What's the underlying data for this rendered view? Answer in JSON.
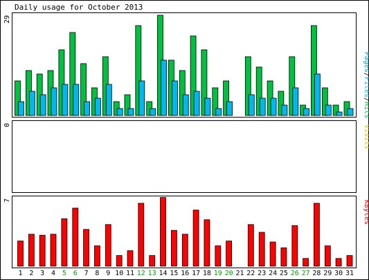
{
  "title": "Daily usage for October 2013",
  "colors": {
    "hits": "#00c040",
    "files": "#00b8f0",
    "pages": "#00a0c0",
    "visits": "#e0c000",
    "kbytes": "#ff0000",
    "weekend_label": "#00a000",
    "weekday_label": "#000000",
    "frame": "#000000",
    "background": "#ffffff"
  },
  "chart_data": [
    {
      "type": "bar",
      "name": "hits-files-pages",
      "axis_max_label": "29",
      "ylim": [
        0,
        29
      ],
      "legend": [
        "Pages",
        "/",
        "Files",
        "/",
        "Hits"
      ],
      "categories": [
        "1",
        "2",
        "3",
        "4",
        "5",
        "6",
        "7",
        "8",
        "9",
        "10",
        "11",
        "12",
        "13",
        "14",
        "15",
        "16",
        "17",
        "18",
        "19",
        "20",
        "21",
        "22",
        "23",
        "24",
        "25",
        "26",
        "27",
        "28",
        "29",
        "30",
        "31"
      ],
      "series": [
        {
          "name": "Hits",
          "values": [
            10,
            13,
            12,
            13,
            19,
            24,
            15,
            8,
            17,
            4,
            6,
            26,
            4,
            29,
            16,
            13,
            23,
            19,
            8,
            10,
            0,
            17,
            14,
            10,
            7,
            17,
            3,
            26,
            8,
            3,
            4
          ]
        },
        {
          "name": "Files",
          "values": [
            4,
            7,
            6,
            8,
            9,
            9,
            4,
            5,
            9,
            2,
            2,
            10,
            2,
            16,
            10,
            6,
            7,
            5,
            2,
            4,
            0,
            6,
            5,
            5,
            3,
            8,
            2,
            12,
            3,
            1,
            2
          ]
        }
      ]
    },
    {
      "type": "bar",
      "name": "visits",
      "axis_max_label": "0",
      "ylim": [
        0,
        1
      ],
      "legend": [
        "Visits"
      ],
      "categories": [
        "1",
        "2",
        "3",
        "4",
        "5",
        "6",
        "7",
        "8",
        "9",
        "10",
        "11",
        "12",
        "13",
        "14",
        "15",
        "16",
        "17",
        "18",
        "19",
        "20",
        "21",
        "22",
        "23",
        "24",
        "25",
        "26",
        "27",
        "28",
        "29",
        "30",
        "31"
      ],
      "series": [
        {
          "name": "Visits",
          "values": [
            0,
            0,
            0,
            0,
            0,
            0,
            0,
            0,
            0,
            0,
            0,
            0,
            0,
            0,
            0,
            0,
            0,
            0,
            0,
            0,
            0,
            0,
            0,
            0,
            0,
            0,
            0,
            0,
            0,
            0,
            0
          ]
        }
      ]
    },
    {
      "type": "bar",
      "name": "kbytes",
      "axis_max_label": "7",
      "ylim": [
        0,
        7
      ],
      "legend": [
        "KBytes"
      ],
      "categories": [
        "1",
        "2",
        "3",
        "4",
        "5",
        "6",
        "7",
        "8",
        "9",
        "10",
        "11",
        "12",
        "13",
        "14",
        "15",
        "16",
        "17",
        "18",
        "19",
        "20",
        "21",
        "22",
        "23",
        "24",
        "25",
        "26",
        "27",
        "28",
        "29",
        "30",
        "31"
      ],
      "series": [
        {
          "name": "KBytes",
          "values": [
            2.6,
            3.3,
            3.2,
            3.3,
            4.9,
            6.0,
            3.8,
            2.1,
            4.3,
            1.1,
            1.6,
            6.5,
            1.1,
            7.1,
            3.7,
            3.3,
            5.8,
            4.8,
            2.1,
            2.6,
            0,
            4.3,
            3.5,
            2.5,
            1.9,
            4.2,
            0.8,
            6.5,
            2.1,
            0.8,
            1.1
          ]
        }
      ]
    }
  ],
  "x_labels": [
    "1",
    "2",
    "3",
    "4",
    "5",
    "6",
    "7",
    "8",
    "9",
    "10",
    "11",
    "12",
    "13",
    "14",
    "15",
    "16",
    "17",
    "18",
    "19",
    "20",
    "21",
    "22",
    "23",
    "24",
    "25",
    "26",
    "27",
    "28",
    "29",
    "30",
    "31"
  ],
  "weekend_days": [
    "5",
    "6",
    "12",
    "13",
    "19",
    "20",
    "26",
    "27"
  ]
}
